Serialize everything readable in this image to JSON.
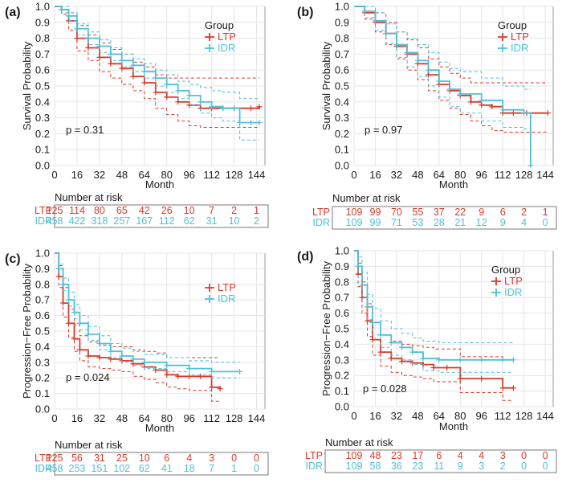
{
  "colors": {
    "ltp": "#d93a2b",
    "idr": "#4fc0d6",
    "grid": "#e6e6e6",
    "frame": "#333333",
    "text": "#1a1a1a"
  },
  "risk_header": "Number at risk",
  "chart_data": [
    {
      "panel": "(a)",
      "type": "line",
      "ylabel": "Survival Probability",
      "xlabel": "Month",
      "x_ticks": [
        0,
        16,
        32,
        48,
        64,
        80,
        96,
        112,
        128,
        144
      ],
      "y_ticks": [
        "0.0",
        "0.1",
        "0.2",
        "0.3",
        "0.4",
        "0.5",
        "0.6",
        "0.7",
        "0.8",
        "0.9",
        "1.0"
      ],
      "xlim": [
        0,
        150
      ],
      "ylim": [
        0,
        1.0
      ],
      "legend": {
        "title": "Group",
        "position": "top-right"
      },
      "pvalue": "p = 0.31",
      "grid": true,
      "series": [
        {
          "name": "LTP",
          "color": "#d93a2b",
          "x": [
            0,
            5,
            10,
            16,
            24,
            32,
            40,
            48,
            56,
            64,
            72,
            80,
            88,
            96,
            104,
            112,
            120,
            128,
            140,
            146
          ],
          "y": [
            1.0,
            0.98,
            0.91,
            0.8,
            0.74,
            0.68,
            0.64,
            0.61,
            0.56,
            0.52,
            0.46,
            0.43,
            0.4,
            0.38,
            0.36,
            0.36,
            0.36,
            0.36,
            0.36,
            0.37
          ],
          "upper": [
            1.0,
            1.0,
            0.96,
            0.88,
            0.82,
            0.77,
            0.73,
            0.7,
            0.65,
            0.62,
            0.57,
            0.55,
            0.55,
            0.55,
            0.55,
            0.55,
            0.55,
            0.55,
            0.55,
            0.55
          ],
          "lower": [
            1.0,
            0.95,
            0.85,
            0.72,
            0.66,
            0.59,
            0.55,
            0.51,
            0.47,
            0.42,
            0.36,
            0.32,
            0.28,
            0.25,
            0.24,
            0.24,
            0.24,
            0.24,
            0.24,
            0.24
          ]
        },
        {
          "name": "IDR",
          "color": "#4fc0d6",
          "x": [
            0,
            5,
            10,
            16,
            24,
            32,
            40,
            48,
            56,
            64,
            72,
            80,
            88,
            96,
            104,
            112,
            120,
            128,
            132,
            140,
            146
          ],
          "y": [
            1.0,
            0.98,
            0.94,
            0.86,
            0.8,
            0.75,
            0.7,
            0.66,
            0.63,
            0.59,
            0.55,
            0.51,
            0.47,
            0.44,
            0.4,
            0.37,
            0.36,
            0.36,
            0.27,
            0.27,
            0.27
          ],
          "upper": [
            1.0,
            1.0,
            0.96,
            0.89,
            0.84,
            0.79,
            0.74,
            0.7,
            0.67,
            0.64,
            0.6,
            0.57,
            0.53,
            0.51,
            0.49,
            0.47,
            0.46,
            0.46,
            0.42,
            0.42,
            0.42
          ],
          "lower": [
            1.0,
            0.96,
            0.91,
            0.82,
            0.76,
            0.71,
            0.66,
            0.62,
            0.59,
            0.55,
            0.5,
            0.46,
            0.42,
            0.38,
            0.33,
            0.3,
            0.28,
            0.28,
            0.16,
            0.16,
            0.16
          ]
        }
      ],
      "risk": {
        "LTP": [
          "125",
          "114",
          "80",
          "65",
          "42",
          "26",
          "10",
          "7",
          "2",
          "1"
        ],
        "IDR": [
          "458",
          "422",
          "318",
          "257",
          "167",
          "112",
          "62",
          "31",
          "10",
          "2"
        ]
      }
    },
    {
      "panel": "(b)",
      "type": "line",
      "ylabel": "Survival Probability",
      "xlabel": "Month",
      "x_ticks": [
        0,
        16,
        32,
        48,
        64,
        80,
        96,
        112,
        128,
        144
      ],
      "y_ticks": [
        "0.0",
        "0.1",
        "0.2",
        "0.3",
        "0.4",
        "0.5",
        "0.6",
        "0.7",
        "0.8",
        "0.9",
        "1.0"
      ],
      "xlim": [
        0,
        150
      ],
      "ylim": [
        0,
        1.0
      ],
      "legend": {
        "title": "Group",
        "position": "top-right"
      },
      "pvalue": "p = 0.97",
      "grid": true,
      "series": [
        {
          "name": "LTP",
          "color": "#d93a2b",
          "x": [
            0,
            8,
            16,
            24,
            32,
            40,
            48,
            56,
            64,
            72,
            80,
            88,
            96,
            104,
            112,
            120,
            130,
            146
          ],
          "y": [
            1.0,
            0.96,
            0.9,
            0.83,
            0.75,
            0.7,
            0.64,
            0.57,
            0.51,
            0.47,
            0.44,
            0.4,
            0.38,
            0.37,
            0.33,
            0.33,
            0.33,
            0.33
          ],
          "upper": [
            1.0,
            1.0,
            0.96,
            0.9,
            0.84,
            0.79,
            0.74,
            0.67,
            0.62,
            0.58,
            0.55,
            0.52,
            0.52,
            0.52,
            0.52,
            0.52,
            0.52,
            0.52
          ],
          "lower": [
            1.0,
            0.92,
            0.84,
            0.76,
            0.67,
            0.6,
            0.54,
            0.47,
            0.41,
            0.36,
            0.32,
            0.28,
            0.25,
            0.22,
            0.21,
            0.21,
            0.21,
            0.21
          ]
        },
        {
          "name": "IDR",
          "color": "#4fc0d6",
          "x": [
            0,
            8,
            16,
            24,
            32,
            40,
            48,
            56,
            64,
            72,
            80,
            96,
            112,
            128,
            133
          ],
          "y": [
            1.0,
            0.97,
            0.91,
            0.83,
            0.76,
            0.71,
            0.66,
            0.6,
            0.53,
            0.48,
            0.45,
            0.41,
            0.35,
            0.33,
            0.0
          ],
          "upper": [
            1.0,
            1.0,
            0.96,
            0.89,
            0.84,
            0.8,
            0.76,
            0.71,
            0.65,
            0.61,
            0.59,
            0.55,
            0.5,
            0.48,
            0.48
          ],
          "lower": [
            1.0,
            0.93,
            0.85,
            0.77,
            0.68,
            0.62,
            0.56,
            0.5,
            0.43,
            0.37,
            0.33,
            0.28,
            0.24,
            0.23,
            0.23
          ]
        }
      ],
      "risk": {
        "LTP": [
          "109",
          "99",
          "70",
          "55",
          "37",
          "22",
          "9",
          "6",
          "2",
          "1"
        ],
        "IDR": [
          "109",
          "99",
          "71",
          "53",
          "28",
          "21",
          "12",
          "9",
          "4",
          "0"
        ]
      }
    },
    {
      "panel": "(c)",
      "type": "line",
      "ylabel": "Progression−Free Probability",
      "xlabel": "Month",
      "x_ticks": [
        0,
        16,
        32,
        48,
        64,
        80,
        96,
        112,
        128,
        144
      ],
      "y_ticks": [
        "0.0",
        "0.1",
        "0.2",
        "0.3",
        "0.4",
        "0.5",
        "0.6",
        "0.7",
        "0.8",
        "0.9",
        "1.0"
      ],
      "xlim": [
        0,
        150
      ],
      "ylim": [
        0,
        1.0
      ],
      "legend": {
        "title": "",
        "position": "top-right"
      },
      "pvalue": "p = 0.024",
      "grid": true,
      "series": [
        {
          "name": "LTP",
          "color": "#d93a2b",
          "x": [
            0,
            3,
            6,
            10,
            14,
            18,
            24,
            32,
            40,
            48,
            56,
            64,
            72,
            80,
            88,
            96,
            104,
            112,
            118
          ],
          "y": [
            1.0,
            0.85,
            0.68,
            0.55,
            0.45,
            0.38,
            0.34,
            0.33,
            0.32,
            0.31,
            0.29,
            0.27,
            0.25,
            0.22,
            0.21,
            0.21,
            0.21,
            0.14,
            0.13
          ],
          "upper": [
            1.0,
            0.92,
            0.78,
            0.64,
            0.54,
            0.47,
            0.43,
            0.41,
            0.4,
            0.4,
            0.38,
            0.37,
            0.36,
            0.33,
            0.33,
            0.33,
            0.33,
            0.33,
            0.33
          ],
          "lower": [
            1.0,
            0.78,
            0.59,
            0.46,
            0.37,
            0.31,
            0.27,
            0.26,
            0.25,
            0.24,
            0.21,
            0.19,
            0.17,
            0.14,
            0.13,
            0.12,
            0.12,
            0.05,
            0.05
          ]
        },
        {
          "name": "IDR",
          "color": "#4fc0d6",
          "x": [
            0,
            3,
            6,
            10,
            14,
            18,
            24,
            32,
            40,
            48,
            56,
            64,
            80,
            96,
            112,
            132
          ],
          "y": [
            1.0,
            0.9,
            0.8,
            0.7,
            0.62,
            0.55,
            0.48,
            0.42,
            0.37,
            0.34,
            0.32,
            0.3,
            0.28,
            0.26,
            0.24,
            0.24
          ],
          "upper": [
            1.0,
            0.93,
            0.84,
            0.75,
            0.67,
            0.6,
            0.53,
            0.47,
            0.42,
            0.39,
            0.37,
            0.35,
            0.33,
            0.31,
            0.3,
            0.3
          ],
          "lower": [
            1.0,
            0.87,
            0.76,
            0.66,
            0.58,
            0.51,
            0.44,
            0.38,
            0.33,
            0.3,
            0.28,
            0.26,
            0.24,
            0.22,
            0.2,
            0.2
          ]
        }
      ],
      "risk": {
        "LTP": [
          "125",
          "56",
          "31",
          "25",
          "10",
          "6",
          "4",
          "3",
          "0",
          "0"
        ],
        "IDR": [
          "458",
          "253",
          "151",
          "102",
          "62",
          "41",
          "18",
          "7",
          "1",
          "0"
        ]
      }
    },
    {
      "panel": "(d)",
      "type": "line",
      "ylabel": "Progression−Free Probability",
      "xlabel": "Month",
      "x_ticks": [
        0,
        16,
        32,
        48,
        64,
        80,
        96,
        112,
        128,
        144
      ],
      "y_ticks": [
        "0.0",
        "0.1",
        "0.2",
        "0.3",
        "0.4",
        "0.5",
        "0.6",
        "0.7",
        "0.8",
        "0.9",
        "1.0"
      ],
      "xlim": [
        0,
        150
      ],
      "ylim": [
        0,
        1.0
      ],
      "legend": {
        "title": "Group",
        "position": "top-right"
      },
      "pvalue": "p = 0.028",
      "grid": true,
      "series": [
        {
          "name": "LTP",
          "color": "#d93a2b",
          "x": [
            0,
            3,
            6,
            10,
            14,
            20,
            28,
            36,
            44,
            52,
            60,
            70,
            80,
            96,
            112,
            120
          ],
          "y": [
            1.0,
            0.85,
            0.7,
            0.55,
            0.43,
            0.35,
            0.31,
            0.29,
            0.28,
            0.27,
            0.25,
            0.25,
            0.18,
            0.18,
            0.12,
            0.12
          ],
          "upper": [
            1.0,
            0.92,
            0.8,
            0.66,
            0.54,
            0.46,
            0.42,
            0.4,
            0.39,
            0.38,
            0.37,
            0.37,
            0.32,
            0.32,
            0.3,
            0.3
          ],
          "lower": [
            1.0,
            0.77,
            0.6,
            0.45,
            0.33,
            0.26,
            0.22,
            0.2,
            0.19,
            0.18,
            0.16,
            0.16,
            0.09,
            0.09,
            0.04,
            0.04
          ]
        },
        {
          "name": "IDR",
          "color": "#4fc0d6",
          "x": [
            0,
            3,
            6,
            10,
            14,
            20,
            28,
            36,
            44,
            52,
            64,
            80,
            96,
            112,
            120
          ],
          "y": [
            1.0,
            0.9,
            0.78,
            0.64,
            0.54,
            0.46,
            0.41,
            0.38,
            0.35,
            0.31,
            0.3,
            0.3,
            0.3,
            0.3,
            0.3
          ],
          "upper": [
            1.0,
            0.96,
            0.86,
            0.72,
            0.63,
            0.55,
            0.5,
            0.47,
            0.44,
            0.42,
            0.41,
            0.41,
            0.41,
            0.41,
            0.41
          ],
          "lower": [
            1.0,
            0.83,
            0.7,
            0.56,
            0.46,
            0.38,
            0.33,
            0.3,
            0.27,
            0.23,
            0.22,
            0.22,
            0.22,
            0.22,
            0.22
          ]
        }
      ],
      "risk": {
        "LTP": [
          "109",
          "48",
          "23",
          "17",
          "6",
          "4",
          "4",
          "3",
          "0",
          "0"
        ],
        "IDR": [
          "109",
          "58",
          "36",
          "23",
          "11",
          "9",
          "3",
          "2",
          "0",
          "0"
        ]
      }
    }
  ]
}
